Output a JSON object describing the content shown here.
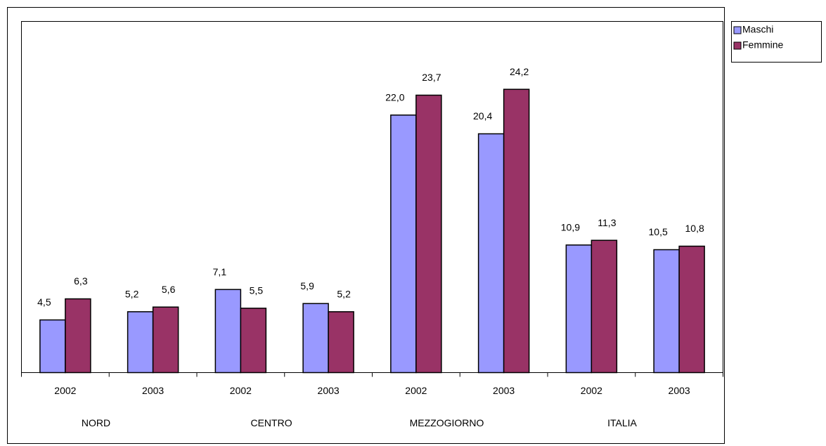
{
  "chart_data": {
    "type": "bar",
    "categories": [
      "2002",
      "2003",
      "2002",
      "2003",
      "2002",
      "2003",
      "2002",
      "2003"
    ],
    "groups": [
      "NORD",
      "CENTRO",
      "MEZZOGIORNO",
      "ITALIA"
    ],
    "series": [
      {
        "name": "Maschi",
        "color": "#9999ff",
        "values": [
          4.5,
          5.2,
          7.1,
          5.9,
          22.0,
          20.4,
          10.9,
          10.5
        ],
        "value_labels": [
          "4,5",
          "5,2",
          "7,1",
          "5,9",
          "22,0",
          "20,4",
          "10,9",
          "10,5"
        ]
      },
      {
        "name": "Femmine",
        "color": "#993366",
        "values": [
          6.3,
          5.6,
          5.5,
          5.2,
          23.7,
          24.2,
          11.3,
          10.8
        ],
        "value_labels": [
          "6,3",
          "5,6",
          "5,5",
          "5,2",
          "23,7",
          "24,2",
          "11,3",
          "10,8"
        ]
      }
    ],
    "ylim": [
      0,
      30
    ],
    "legend": "top-right"
  }
}
